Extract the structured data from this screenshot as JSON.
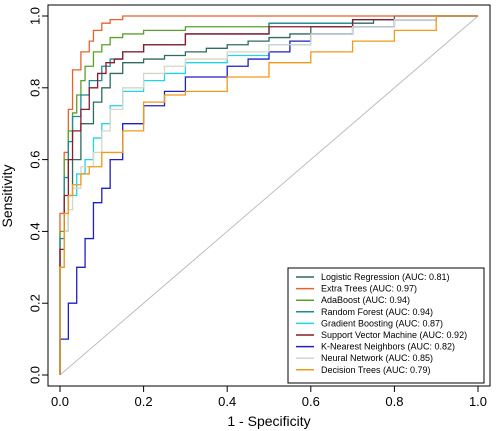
{
  "chart_data": {
    "type": "line",
    "xlabel": "1 - Specificity",
    "ylabel": "Sensitivity",
    "xlim": [
      0,
      1
    ],
    "ylim": [
      0,
      1
    ],
    "xticks": [
      "0.0",
      "0.2",
      "0.4",
      "0.6",
      "0.8",
      "1.0"
    ],
    "yticks": [
      "0.0",
      "0.2",
      "0.4",
      "0.6",
      "0.8",
      "1.0"
    ],
    "legend_position": "bottom-right",
    "reference_line": {
      "x": [
        0,
        1
      ],
      "y": [
        0,
        1
      ],
      "color": "#bdbdbd"
    },
    "series": [
      {
        "name": "Logistic Regression (AUC: 0.81)",
        "color": "#2f6b5e",
        "x": [
          0,
          0.01,
          0.02,
          0.03,
          0.05,
          0.08,
          0.1,
          0.12,
          0.15,
          0.2,
          0.25,
          0.3,
          0.35,
          0.4,
          0.45,
          0.5,
          0.55,
          0.6,
          0.7,
          0.75,
          0.8,
          0.9,
          0.95,
          1
        ],
        "y": [
          0,
          0.3,
          0.4,
          0.5,
          0.6,
          0.7,
          0.76,
          0.8,
          0.84,
          0.87,
          0.88,
          0.89,
          0.9,
          0.91,
          0.92,
          0.93,
          0.94,
          0.95,
          0.97,
          0.98,
          0.99,
          1,
          1,
          1
        ]
      },
      {
        "name": "Extra Trees (AUC: 0.97)",
        "color": "#e8622c",
        "x": [
          0,
          0.01,
          0.02,
          0.03,
          0.05,
          0.07,
          0.08,
          0.1,
          0.12,
          0.15,
          0.2,
          0.3,
          0.5,
          0.7,
          0.9,
          1
        ],
        "y": [
          0,
          0.45,
          0.62,
          0.74,
          0.85,
          0.9,
          0.93,
          0.96,
          0.98,
          0.99,
          1,
          1,
          1,
          1,
          1,
          1
        ]
      },
      {
        "name": "AdaBoost (AUC: 0.94)",
        "color": "#5aa02c",
        "x": [
          0,
          0.01,
          0.02,
          0.03,
          0.04,
          0.05,
          0.06,
          0.08,
          0.1,
          0.12,
          0.15,
          0.2,
          0.3,
          0.5,
          0.7,
          0.9,
          1
        ],
        "y": [
          0,
          0.4,
          0.6,
          0.68,
          0.73,
          0.78,
          0.82,
          0.86,
          0.9,
          0.92,
          0.94,
          0.95,
          0.96,
          0.97,
          0.98,
          0.99,
          1
        ]
      },
      {
        "name": "Random Forest (AUC: 0.94)",
        "color": "#1b8a9a",
        "x": [
          0,
          0.01,
          0.02,
          0.03,
          0.05,
          0.07,
          0.1,
          0.12,
          0.15,
          0.2,
          0.3,
          0.5,
          0.7,
          0.9,
          1
        ],
        "y": [
          0,
          0.38,
          0.55,
          0.65,
          0.72,
          0.78,
          0.82,
          0.86,
          0.88,
          0.9,
          0.92,
          0.95,
          0.98,
          0.99,
          1
        ]
      },
      {
        "name": "Gradient Boosting (AUC: 0.87)",
        "color": "#23d3e6",
        "x": [
          0,
          0.01,
          0.02,
          0.04,
          0.06,
          0.08,
          0.1,
          0.12,
          0.15,
          0.2,
          0.25,
          0.3,
          0.4,
          0.5,
          0.6,
          0.7,
          0.8,
          0.9,
          1
        ],
        "y": [
          0,
          0.3,
          0.4,
          0.5,
          0.56,
          0.6,
          0.66,
          0.7,
          0.75,
          0.79,
          0.82,
          0.84,
          0.87,
          0.89,
          0.92,
          0.95,
          0.97,
          0.99,
          1
        ]
      },
      {
        "name": "Support Vector Machine (AUC: 0.92)",
        "color": "#8b1a2e",
        "x": [
          0,
          0.01,
          0.02,
          0.03,
          0.05,
          0.07,
          0.09,
          0.11,
          0.13,
          0.15,
          0.2,
          0.3,
          0.5,
          0.7,
          0.9,
          1
        ],
        "y": [
          0,
          0.35,
          0.5,
          0.6,
          0.68,
          0.74,
          0.8,
          0.84,
          0.87,
          0.88,
          0.9,
          0.92,
          0.95,
          0.97,
          0.99,
          1
        ]
      },
      {
        "name": "K-Nearest Neighbors (AUC: 0.82)",
        "color": "#1f1fc4",
        "x": [
          0,
          0.02,
          0.04,
          0.06,
          0.08,
          0.1,
          0.12,
          0.15,
          0.2,
          0.25,
          0.3,
          0.4,
          0.45,
          0.5,
          0.55,
          0.6,
          0.7,
          0.8,
          0.9,
          1
        ],
        "y": [
          0,
          0.1,
          0.2,
          0.3,
          0.38,
          0.48,
          0.52,
          0.6,
          0.7,
          0.75,
          0.79,
          0.83,
          0.86,
          0.88,
          0.9,
          0.93,
          0.95,
          0.97,
          0.99,
          1
        ]
      },
      {
        "name": "Neural Network (AUC: 0.85)",
        "color": "#d6d6c8",
        "x": [
          0,
          0.01,
          0.02,
          0.03,
          0.05,
          0.08,
          0.1,
          0.12,
          0.15,
          0.2,
          0.25,
          0.3,
          0.4,
          0.5,
          0.6,
          0.7,
          0.8,
          0.9,
          1
        ],
        "y": [
          0,
          0.3,
          0.4,
          0.46,
          0.52,
          0.58,
          0.62,
          0.68,
          0.74,
          0.8,
          0.84,
          0.86,
          0.88,
          0.9,
          0.92,
          0.95,
          0.97,
          0.99,
          1
        ]
      },
      {
        "name": "Decision Trees (AUC: 0.79)",
        "color": "#f09a1a",
        "x": [
          0,
          0.01,
          0.02,
          0.03,
          0.05,
          0.07,
          0.1,
          0.15,
          0.2,
          0.25,
          0.3,
          0.4,
          0.5,
          0.6,
          0.7,
          0.8,
          0.9,
          1
        ],
        "y": [
          0,
          0.3,
          0.45,
          0.5,
          0.53,
          0.56,
          0.58,
          0.62,
          0.68,
          0.76,
          0.78,
          0.79,
          0.83,
          0.87,
          0.9,
          0.93,
          0.96,
          1
        ]
      }
    ]
  }
}
